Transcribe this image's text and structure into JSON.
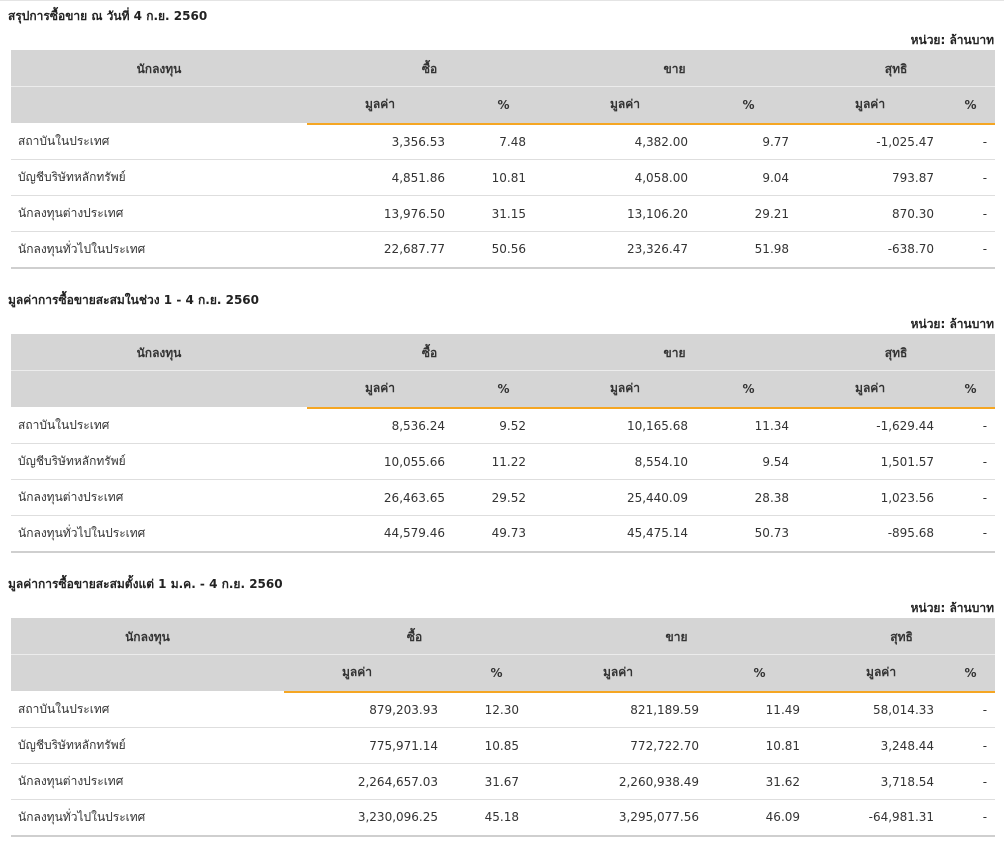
{
  "sections": [
    {
      "title": "สรุปการซื้อขาย ณ วันที่ 4 ก.ย. 2560",
      "unit": "หน่วย: ล้านบาท",
      "header": {
        "investor": "นักลงทุน",
        "buy": "ซื้อ",
        "sell": "ขาย",
        "net": "สุทธิ",
        "value": "มูลค่า",
        "pct": "%"
      },
      "rows": [
        {
          "investor": "สถาบันในประเทศ",
          "buy_value": "3,356.53",
          "buy_pct": "7.48",
          "sell_value": "4,382.00",
          "sell_pct": "9.77",
          "net_value": "-1,025.47",
          "net_pct": "-",
          "net_sign": "neg"
        },
        {
          "investor": "บัญชีบริษัทหลักทรัพย์",
          "buy_value": "4,851.86",
          "buy_pct": "10.81",
          "sell_value": "4,058.00",
          "sell_pct": "9.04",
          "net_value": "793.87",
          "net_pct": "-",
          "net_sign": "pos"
        },
        {
          "investor": "นักลงทุนต่างประเทศ",
          "buy_value": "13,976.50",
          "buy_pct": "31.15",
          "sell_value": "13,106.20",
          "sell_pct": "29.21",
          "net_value": "870.30",
          "net_pct": "-",
          "net_sign": "pos"
        },
        {
          "investor": "นักลงทุนทั่วไปในประเทศ",
          "buy_value": "22,687.77",
          "buy_pct": "50.56",
          "sell_value": "23,326.47",
          "sell_pct": "51.98",
          "net_value": "-638.70",
          "net_pct": "-",
          "net_sign": "neg"
        }
      ]
    },
    {
      "title": "มูลค่าการซื้อขายสะสมในช่วง 1 - 4 ก.ย. 2560",
      "unit": "หน่วย: ล้านบาท",
      "header": {
        "investor": "นักลงทุน",
        "buy": "ซื้อ",
        "sell": "ขาย",
        "net": "สุทธิ",
        "value": "มูลค่า",
        "pct": "%"
      },
      "rows": [
        {
          "investor": "สถาบันในประเทศ",
          "buy_value": "8,536.24",
          "buy_pct": "9.52",
          "sell_value": "10,165.68",
          "sell_pct": "11.34",
          "net_value": "-1,629.44",
          "net_pct": "-",
          "net_sign": "neg"
        },
        {
          "investor": "บัญชีบริษัทหลักทรัพย์",
          "buy_value": "10,055.66",
          "buy_pct": "11.22",
          "sell_value": "8,554.10",
          "sell_pct": "9.54",
          "net_value": "1,501.57",
          "net_pct": "-",
          "net_sign": "pos"
        },
        {
          "investor": "นักลงทุนต่างประเทศ",
          "buy_value": "26,463.65",
          "buy_pct": "29.52",
          "sell_value": "25,440.09",
          "sell_pct": "28.38",
          "net_value": "1,023.56",
          "net_pct": "-",
          "net_sign": "pos"
        },
        {
          "investor": "นักลงทุนทั่วไปในประเทศ",
          "buy_value": "44,579.46",
          "buy_pct": "49.73",
          "sell_value": "45,475.14",
          "sell_pct": "50.73",
          "net_value": "-895.68",
          "net_pct": "-",
          "net_sign": "neg"
        }
      ]
    },
    {
      "title": "มูลค่าการซื้อขายสะสมตั้งแต่ 1 ม.ค. - 4 ก.ย. 2560",
      "unit": "หน่วย: ล้านบาท",
      "header": {
        "investor": "นักลงทุน",
        "buy": "ซื้อ",
        "sell": "ขาย",
        "net": "สุทธิ",
        "value": "มูลค่า",
        "pct": "%"
      },
      "rows": [
        {
          "investor": "สถาบันในประเทศ",
          "buy_value": "879,203.93",
          "buy_pct": "12.30",
          "sell_value": "821,189.59",
          "sell_pct": "11.49",
          "net_value": "58,014.33",
          "net_pct": "-",
          "net_sign": "pos"
        },
        {
          "investor": "บัญชีบริษัทหลักทรัพย์",
          "buy_value": "775,971.14",
          "buy_pct": "10.85",
          "sell_value": "772,722.70",
          "sell_pct": "10.81",
          "net_value": "3,248.44",
          "net_pct": "-",
          "net_sign": "pos"
        },
        {
          "investor": "นักลงทุนต่างประเทศ",
          "buy_value": "2,264,657.03",
          "buy_pct": "31.67",
          "sell_value": "2,260,938.49",
          "sell_pct": "31.62",
          "net_value": "3,718.54",
          "net_pct": "-",
          "net_sign": "pos"
        },
        {
          "investor": "นักลงทุนทั่วไปในประเทศ",
          "buy_value": "3,230,096.25",
          "buy_pct": "45.18",
          "sell_value": "3,295,077.56",
          "sell_pct": "46.09",
          "net_value": "-64,981.31",
          "net_pct": "-",
          "net_sign": "neg"
        }
      ]
    }
  ],
  "colors": {
    "accent_line": "#f5a623",
    "header_bg": "#d5d5d5",
    "negative": "#e02020",
    "positive": "#2e8b1e"
  }
}
